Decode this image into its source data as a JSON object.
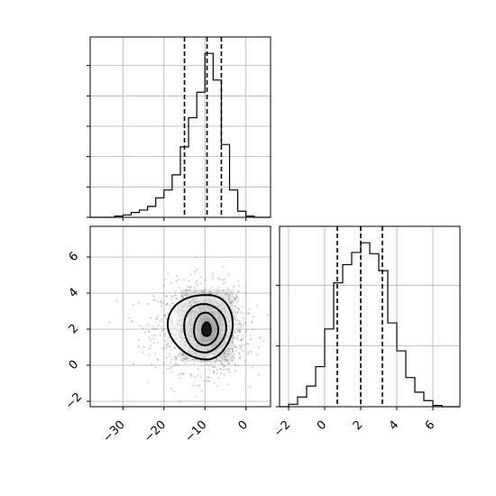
{
  "chart_data": [
    {
      "type": "histogram",
      "panel": "marginal x (top-left)",
      "xlim": [
        -38,
        6
      ],
      "x_ticks": [
        -30,
        -20,
        -10,
        0
      ],
      "tick_labels_shown": false,
      "grid": true,
      "bin_edges": [
        -38,
        -36,
        -34,
        -32,
        -30,
        -28,
        -26,
        -24,
        -22,
        -20,
        -18,
        -16,
        -14,
        -12,
        -10,
        -8,
        -6,
        -4,
        -2,
        0,
        2,
        4,
        6
      ],
      "counts": [
        0,
        0,
        0,
        2,
        4,
        8,
        12,
        18,
        32,
        45,
        70,
        116,
        164,
        206,
        270,
        226,
        120,
        45,
        10,
        2,
        0,
        0
      ],
      "quantile_lines": [
        -15.0,
        -9.5,
        -6.0
      ]
    },
    {
      "type": "histogram",
      "panel": "marginal y (bottom-right)",
      "xlim": [
        -2.5,
        7.5
      ],
      "x_ticks": [
        -2,
        0,
        2,
        4,
        6
      ],
      "x_tick_labels": [
        "−2",
        "0",
        "2",
        "4",
        "6"
      ],
      "grid": true,
      "bin_edges": [
        -2.5,
        -2.0,
        -1.5,
        -1.0,
        -0.5,
        0.0,
        0.5,
        1.0,
        1.5,
        2.0,
        2.5,
        3.0,
        3.5,
        4.0,
        4.5,
        5.0,
        5.5,
        6.0,
        6.5,
        7.0,
        7.5
      ],
      "counts": [
        0,
        2,
        8,
        17,
        33,
        64,
        102,
        117,
        127,
        135,
        126,
        112,
        69,
        46,
        24,
        12,
        5,
        1,
        0,
        0
      ],
      "quantile_lines": [
        0.7,
        2.0,
        3.2
      ]
    },
    {
      "type": "scatter",
      "panel": "joint 2D density (bottom-left)",
      "xlim": [
        -38,
        6
      ],
      "ylim": [
        -2.3,
        7.7
      ],
      "x_ticks": [
        -30,
        -20,
        -10,
        0
      ],
      "x_tick_labels": [
        "−30",
        "−20",
        "−10",
        "0"
      ],
      "y_ticks": [
        -2,
        0,
        2,
        4,
        6
      ],
      "y_tick_labels": [
        "−2",
        "0",
        "2",
        "4",
        "6"
      ],
      "grid": true,
      "center": [
        -9.5,
        2.0
      ],
      "spread": [
        5.5,
        1.2
      ],
      "contour_levels": [
        "outer",
        "second",
        "third",
        "core"
      ]
    }
  ]
}
